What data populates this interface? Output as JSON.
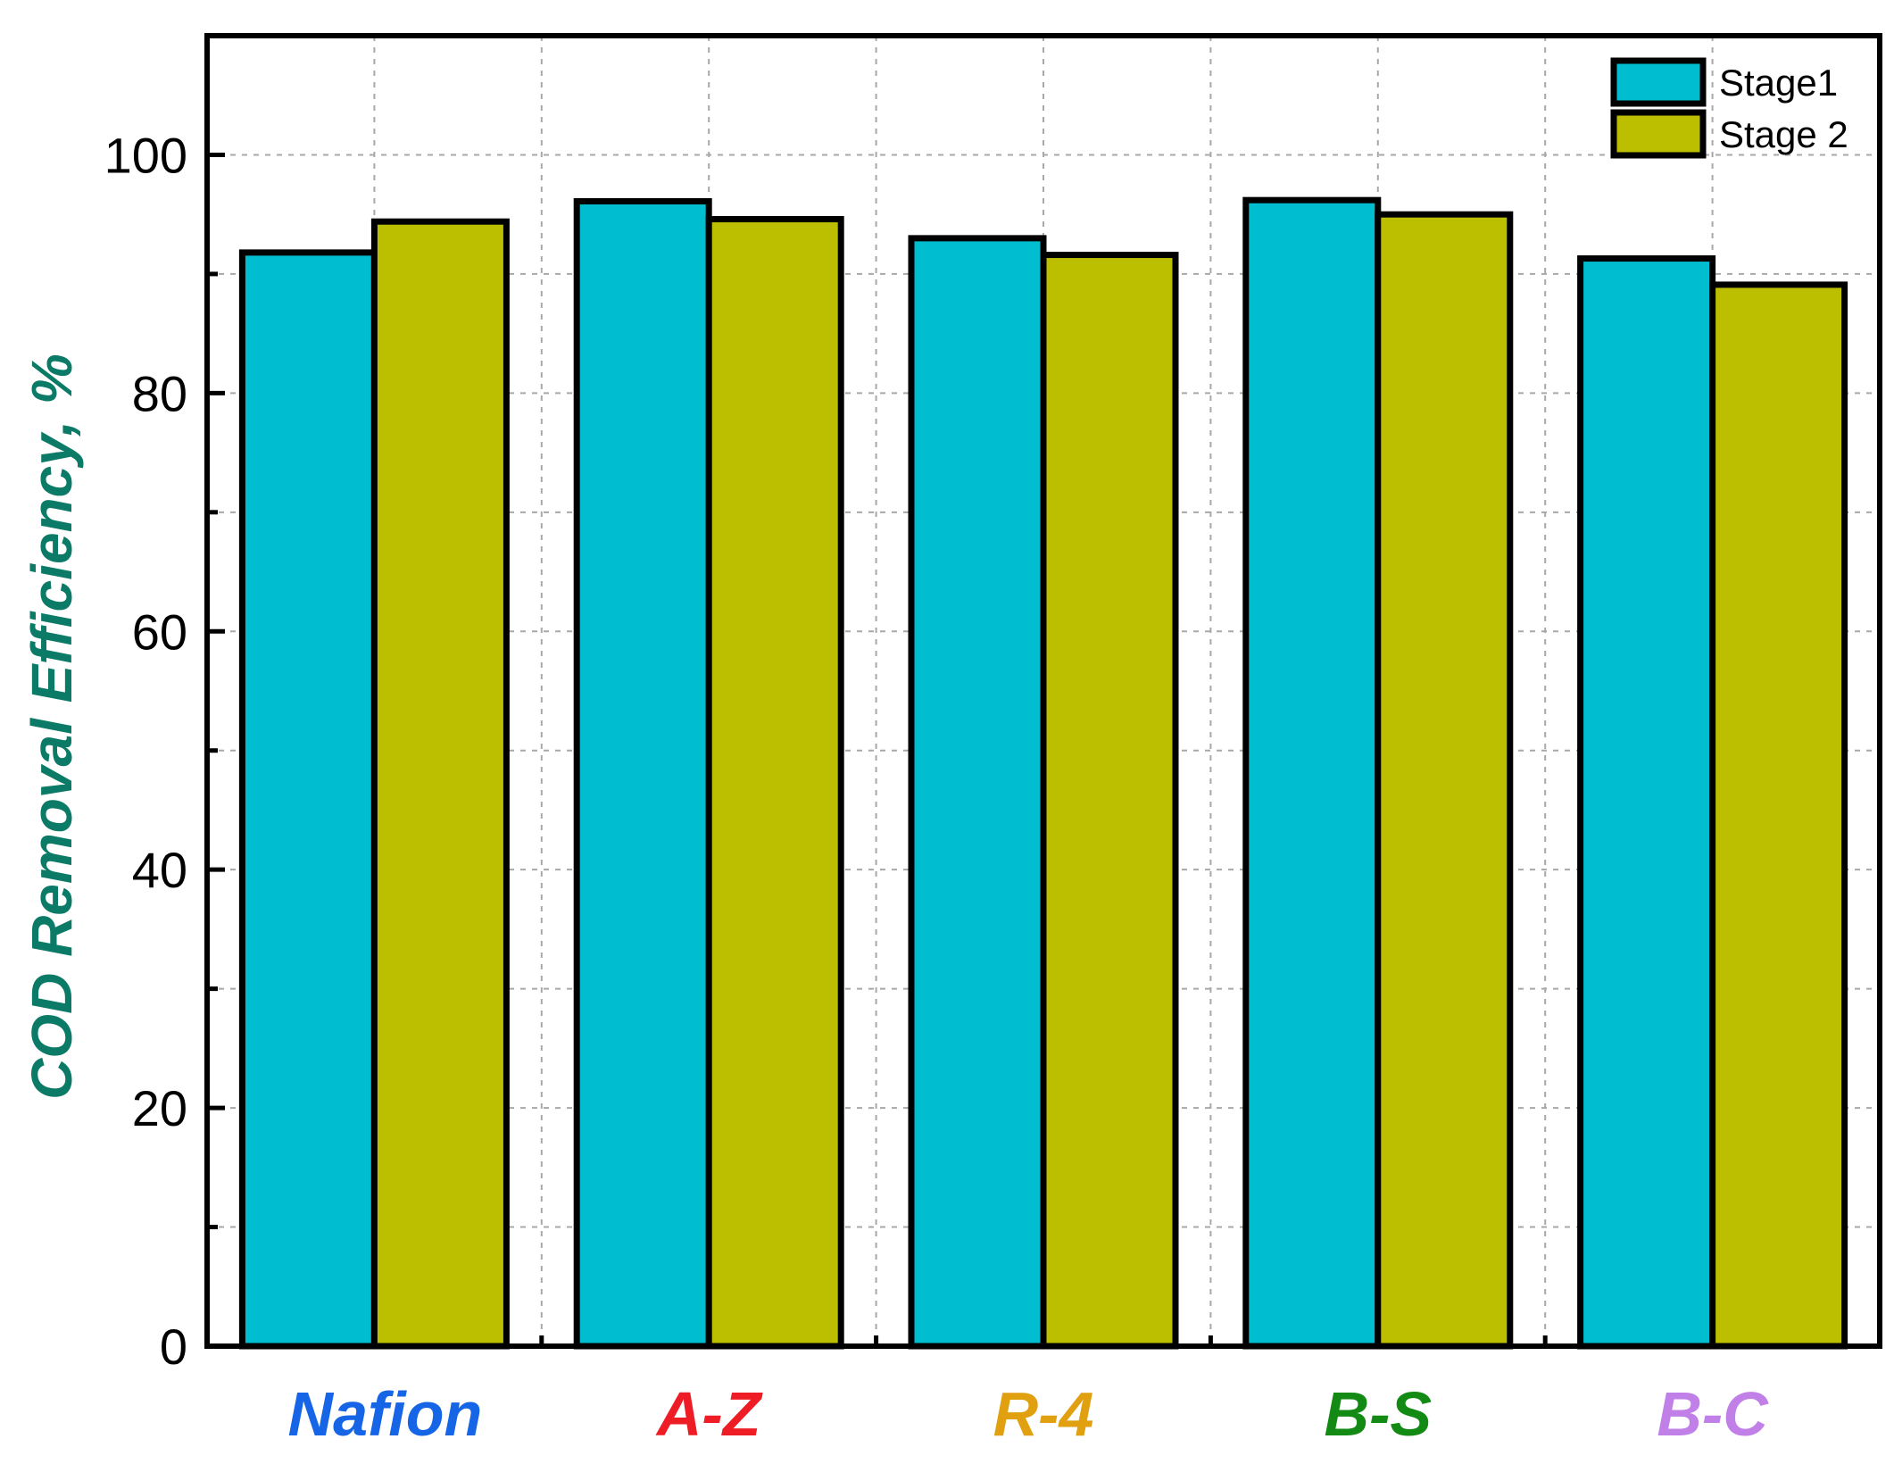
{
  "chart_data": {
    "type": "bar",
    "title": "",
    "xlabel": "",
    "ylabel": "COD Removal Efficiency, %",
    "ylim": [
      0,
      110
    ],
    "yticks": [
      0,
      20,
      40,
      60,
      80,
      100
    ],
    "grid": true,
    "legend_position": "top-right",
    "categories": [
      "Nafion",
      "A-Z",
      "R-4",
      "B-S",
      "B-C"
    ],
    "category_colors": [
      "#1565e6",
      "#ee1c25",
      "#e0a010",
      "#138a13",
      "#c080e8"
    ],
    "series": [
      {
        "name": "Stage1",
        "color": "#00bed0",
        "values": [
          91.8,
          96.1,
          93.0,
          96.2,
          91.3
        ]
      },
      {
        "name": "Stage 2",
        "color": "#bcbe00",
        "values": [
          94.4,
          94.6,
          91.6,
          95.0,
          89.1
        ]
      }
    ],
    "ylabel_color": "#0b7a66"
  }
}
